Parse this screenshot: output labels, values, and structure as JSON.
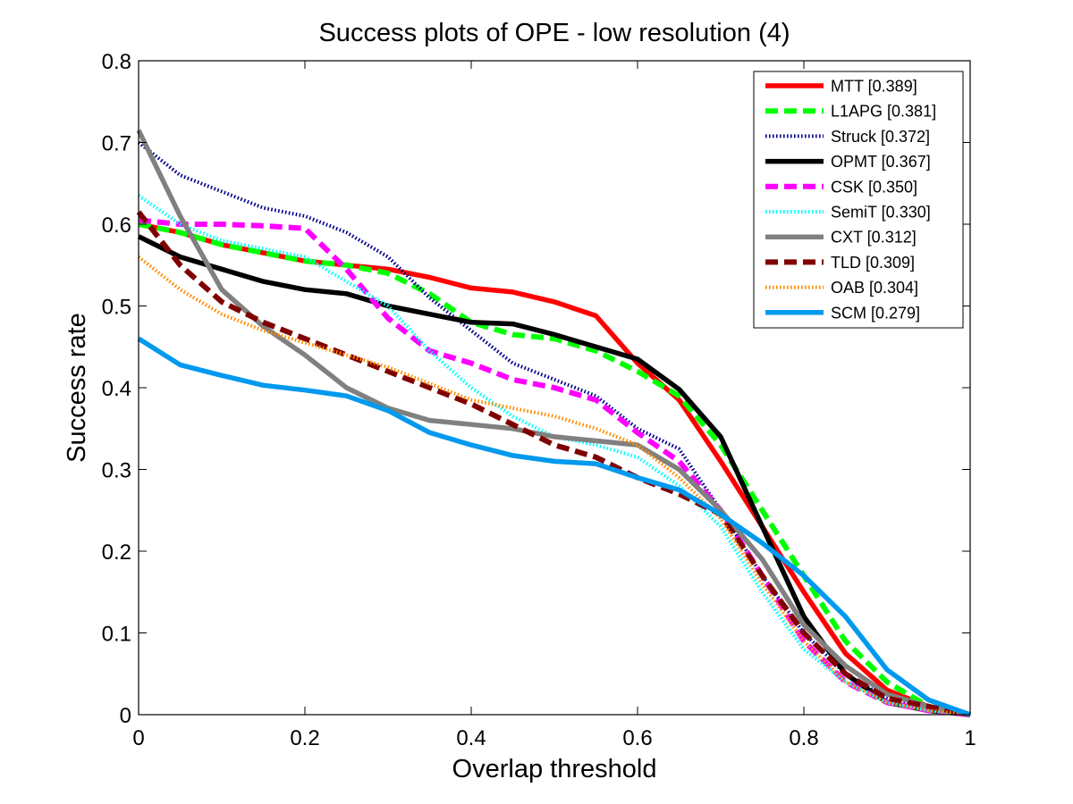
{
  "chart_data": {
    "type": "line",
    "title": "Success plots of OPE - low resolution (4)",
    "xlabel": "Overlap threshold",
    "ylabel": "Success rate",
    "xlim": [
      0,
      1
    ],
    "ylim": [
      0,
      0.8
    ],
    "xticks": [
      "0",
      "0.2",
      "0.4",
      "0.6",
      "0.8",
      "1"
    ],
    "yticks": [
      "0",
      "0.1",
      "0.2",
      "0.3",
      "0.4",
      "0.5",
      "0.6",
      "0.7",
      "0.8"
    ],
    "grid": false,
    "legend_position": "top-right",
    "series": [
      {
        "name": "MTT [0.389]",
        "color": "#ff0000",
        "style": "solid",
        "x": [
          0,
          0.05,
          0.1,
          0.15,
          0.2,
          0.25,
          0.3,
          0.35,
          0.4,
          0.45,
          0.5,
          0.55,
          0.6,
          0.65,
          0.7,
          0.75,
          0.8,
          0.85,
          0.9,
          0.95,
          1
        ],
        "y": [
          0.6,
          0.59,
          0.575,
          0.565,
          0.555,
          0.55,
          0.545,
          0.535,
          0.522,
          0.517,
          0.505,
          0.488,
          0.43,
          0.385,
          0.31,
          0.23,
          0.15,
          0.075,
          0.03,
          0.01,
          0.0
        ]
      },
      {
        "name": "L1APG [0.381]",
        "color": "#00ff00",
        "style": "dashed",
        "x": [
          0,
          0.05,
          0.1,
          0.15,
          0.2,
          0.25,
          0.3,
          0.35,
          0.4,
          0.45,
          0.5,
          0.55,
          0.6,
          0.65,
          0.7,
          0.75,
          0.8,
          0.85,
          0.9,
          0.95,
          1
        ],
        "y": [
          0.6,
          0.59,
          0.575,
          0.565,
          0.555,
          0.55,
          0.54,
          0.515,
          0.48,
          0.465,
          0.46,
          0.445,
          0.42,
          0.39,
          0.33,
          0.25,
          0.17,
          0.09,
          0.04,
          0.01,
          0.0
        ]
      },
      {
        "name": "Struck [0.372]",
        "color": "#00008b",
        "style": "dotted",
        "x": [
          0,
          0.05,
          0.1,
          0.15,
          0.2,
          0.25,
          0.3,
          0.35,
          0.4,
          0.45,
          0.5,
          0.55,
          0.6,
          0.65,
          0.7,
          0.75,
          0.8,
          0.85,
          0.9,
          0.95,
          1
        ],
        "y": [
          0.7,
          0.66,
          0.64,
          0.62,
          0.61,
          0.59,
          0.56,
          0.51,
          0.47,
          0.43,
          0.41,
          0.39,
          0.35,
          0.325,
          0.25,
          0.17,
          0.1,
          0.05,
          0.02,
          0.005,
          0.0
        ]
      },
      {
        "name": "OPMT [0.367]",
        "color": "#000000",
        "style": "solid",
        "x": [
          0,
          0.05,
          0.1,
          0.15,
          0.2,
          0.25,
          0.3,
          0.35,
          0.4,
          0.45,
          0.5,
          0.55,
          0.6,
          0.65,
          0.7,
          0.75,
          0.8,
          0.85,
          0.9,
          0.95,
          1
        ],
        "y": [
          0.585,
          0.56,
          0.545,
          0.53,
          0.52,
          0.515,
          0.5,
          0.49,
          0.48,
          0.478,
          0.465,
          0.45,
          0.435,
          0.398,
          0.34,
          0.23,
          0.12,
          0.05,
          0.015,
          0.005,
          0.0
        ]
      },
      {
        "name": "CSK [0.350]",
        "color": "#ff00ff",
        "style": "dashed",
        "x": [
          0,
          0.05,
          0.1,
          0.15,
          0.2,
          0.25,
          0.3,
          0.35,
          0.4,
          0.45,
          0.5,
          0.55,
          0.6,
          0.65,
          0.7,
          0.75,
          0.8,
          0.85,
          0.9,
          0.95,
          1
        ],
        "y": [
          0.605,
          0.6,
          0.6,
          0.598,
          0.595,
          0.545,
          0.485,
          0.445,
          0.43,
          0.41,
          0.4,
          0.385,
          0.345,
          0.31,
          0.25,
          0.17,
          0.09,
          0.04,
          0.015,
          0.005,
          0.0
        ]
      },
      {
        "name": "SemiT [0.330]",
        "color": "#00ffff",
        "style": "dotted",
        "x": [
          0,
          0.05,
          0.1,
          0.15,
          0.2,
          0.25,
          0.3,
          0.35,
          0.4,
          0.45,
          0.5,
          0.55,
          0.6,
          0.65,
          0.7,
          0.75,
          0.8,
          0.85,
          0.9,
          0.95,
          1
        ],
        "y": [
          0.635,
          0.6,
          0.58,
          0.57,
          0.56,
          0.53,
          0.5,
          0.445,
          0.4,
          0.365,
          0.34,
          0.33,
          0.315,
          0.28,
          0.23,
          0.15,
          0.08,
          0.04,
          0.015,
          0.005,
          0.0
        ]
      },
      {
        "name": "CXT [0.312]",
        "color": "#808080",
        "style": "solid",
        "x": [
          0,
          0.05,
          0.1,
          0.15,
          0.2,
          0.25,
          0.3,
          0.35,
          0.4,
          0.45,
          0.5,
          0.55,
          0.6,
          0.65,
          0.7,
          0.75,
          0.8,
          0.85,
          0.9,
          0.95,
          1
        ],
        "y": [
          0.715,
          0.61,
          0.52,
          0.475,
          0.44,
          0.4,
          0.375,
          0.36,
          0.355,
          0.35,
          0.34,
          0.335,
          0.33,
          0.3,
          0.25,
          0.19,
          0.11,
          0.06,
          0.025,
          0.01,
          0.0
        ]
      },
      {
        "name": "TLD [0.309]",
        "color": "#800000",
        "style": "dashed",
        "x": [
          0,
          0.05,
          0.1,
          0.15,
          0.2,
          0.25,
          0.3,
          0.35,
          0.4,
          0.45,
          0.5,
          0.55,
          0.6,
          0.65,
          0.7,
          0.75,
          0.8,
          0.85,
          0.9,
          0.95,
          1
        ],
        "y": [
          0.615,
          0.55,
          0.505,
          0.48,
          0.46,
          0.44,
          0.42,
          0.4,
          0.38,
          0.355,
          0.33,
          0.315,
          0.29,
          0.27,
          0.245,
          0.17,
          0.1,
          0.05,
          0.02,
          0.01,
          0.0
        ]
      },
      {
        "name": "OAB [0.304]",
        "color": "#ff8c00",
        "style": "dotted",
        "x": [
          0,
          0.05,
          0.1,
          0.15,
          0.2,
          0.25,
          0.3,
          0.35,
          0.4,
          0.45,
          0.5,
          0.55,
          0.6,
          0.65,
          0.7,
          0.75,
          0.8,
          0.85,
          0.9,
          0.95,
          1
        ],
        "y": [
          0.56,
          0.52,
          0.49,
          0.47,
          0.455,
          0.44,
          0.425,
          0.405,
          0.385,
          0.375,
          0.365,
          0.35,
          0.33,
          0.29,
          0.24,
          0.16,
          0.09,
          0.04,
          0.015,
          0.005,
          0.0
        ]
      },
      {
        "name": "SCM [0.279]",
        "color": "#0099ee",
        "style": "solid",
        "x": [
          0,
          0.05,
          0.1,
          0.15,
          0.2,
          0.25,
          0.3,
          0.35,
          0.4,
          0.45,
          0.5,
          0.55,
          0.6,
          0.65,
          0.7,
          0.75,
          0.8,
          0.85,
          0.9,
          0.95,
          1
        ],
        "y": [
          0.46,
          0.428,
          0.415,
          0.403,
          0.397,
          0.39,
          0.372,
          0.345,
          0.33,
          0.317,
          0.31,
          0.307,
          0.29,
          0.275,
          0.245,
          0.21,
          0.17,
          0.12,
          0.055,
          0.018,
          0.0
        ]
      }
    ]
  }
}
